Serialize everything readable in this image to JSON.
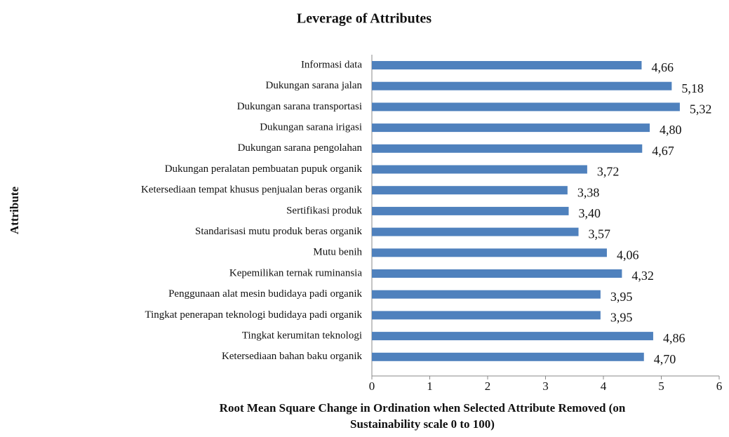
{
  "chart_data": {
    "type": "bar",
    "orientation": "horizontal",
    "title": "Leverage of Attributes",
    "ylabel": "Attribute",
    "xlabel": [
      "Root Mean Square Change in Ordination when Selected Attribute Removed (on",
      "Sustainability scale 0 to 100)"
    ],
    "categories": [
      "Informasi data",
      "Dukungan sarana jalan",
      "Dukungan sarana transportasi",
      "Dukungan sarana irigasi",
      "Dukungan sarana pengolahan",
      "Dukungan peralatan pembuatan pupuk organik",
      "Ketersediaan tempat khusus penjualan beras organik",
      "Sertifikasi produk",
      "Standarisasi mutu produk beras organik",
      "Mutu benih",
      "Kepemilikan ternak ruminansia",
      "Penggunaan alat mesin budidaya padi organik",
      "Tingkat penerapan teknologi budidaya padi organik",
      "Tingkat kerumitan teknologi",
      "Ketersediaan bahan baku organik"
    ],
    "values": [
      4.66,
      5.18,
      5.32,
      4.8,
      4.67,
      3.72,
      3.38,
      3.4,
      3.57,
      4.06,
      4.32,
      3.95,
      3.95,
      4.86,
      4.7
    ],
    "value_labels": [
      "4,66",
      "5,18",
      "5,32",
      "4,80",
      "4,67",
      "3,72",
      "3,38",
      "3,40",
      "3,57",
      "4,06",
      "4,32",
      "3,95",
      "3,95",
      "4,86",
      "4,70"
    ],
    "color": "#4f81bd",
    "xlim": [
      0,
      6
    ],
    "xticks": [
      0,
      1,
      2,
      3,
      4,
      5,
      6
    ],
    "grid": false
  }
}
